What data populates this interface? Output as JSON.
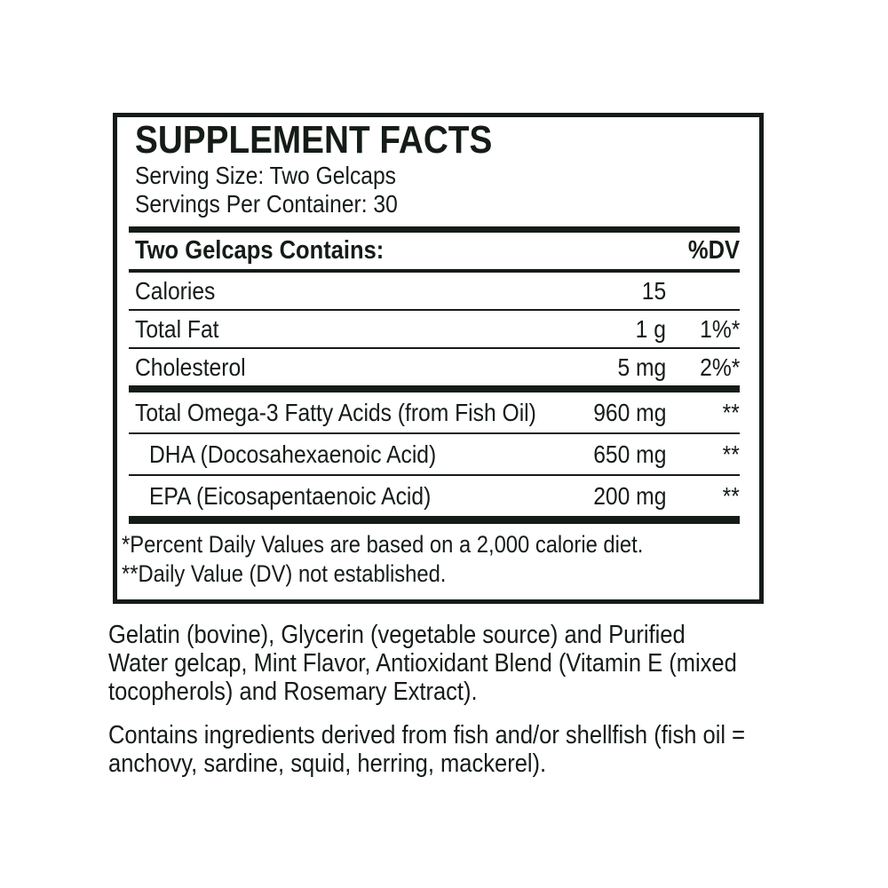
{
  "colors": {
    "ink": "#151c17",
    "background": "#ffffff"
  },
  "panel": {
    "title": "SUPPLEMENT FACTS",
    "serving_size": "Serving Size: Two Gelcaps",
    "servings_per_container": "Servings Per Container: 30",
    "table": {
      "header": {
        "label": "Two Gelcaps Contains:",
        "dv": "%DV"
      },
      "rows": [
        {
          "name": "Calories",
          "amount": "15",
          "dv": ""
        },
        {
          "name": "Total Fat",
          "amount": "1 g",
          "dv": "1%*"
        },
        {
          "name": "Cholesterol",
          "amount": "5 mg",
          "dv": "2%*"
        },
        {
          "name": "Total Omega-3 Fatty Acids (from Fish Oil)",
          "amount": "960 mg",
          "dv": "**"
        },
        {
          "name": "DHA (Docosahexaenoic Acid)",
          "amount": "650 mg",
          "dv": "**"
        },
        {
          "name": "EPA (Eicosapentaenoic Acid)",
          "amount": "200 mg",
          "dv": "**"
        }
      ]
    },
    "footnotes": [
      "*Percent Daily Values are based on a 2,000 calorie diet.",
      "**Daily Value (DV) not established."
    ]
  },
  "other_ingredients": {
    "paragraph1_lines": [
      "Gelatin (bovine), Glycerin (vegetable source) and Purified",
      "Water gelcap, Mint Flavor, Antioxidant Blend (Vitamin E (mixed",
      "tocopherols) and Rosemary Extract)."
    ],
    "paragraph2_lines": [
      "Contains ingredients derived from fish and/or shellfish (fish oil =",
      "anchovy, sardine, squid, herring, mackerel)."
    ]
  }
}
